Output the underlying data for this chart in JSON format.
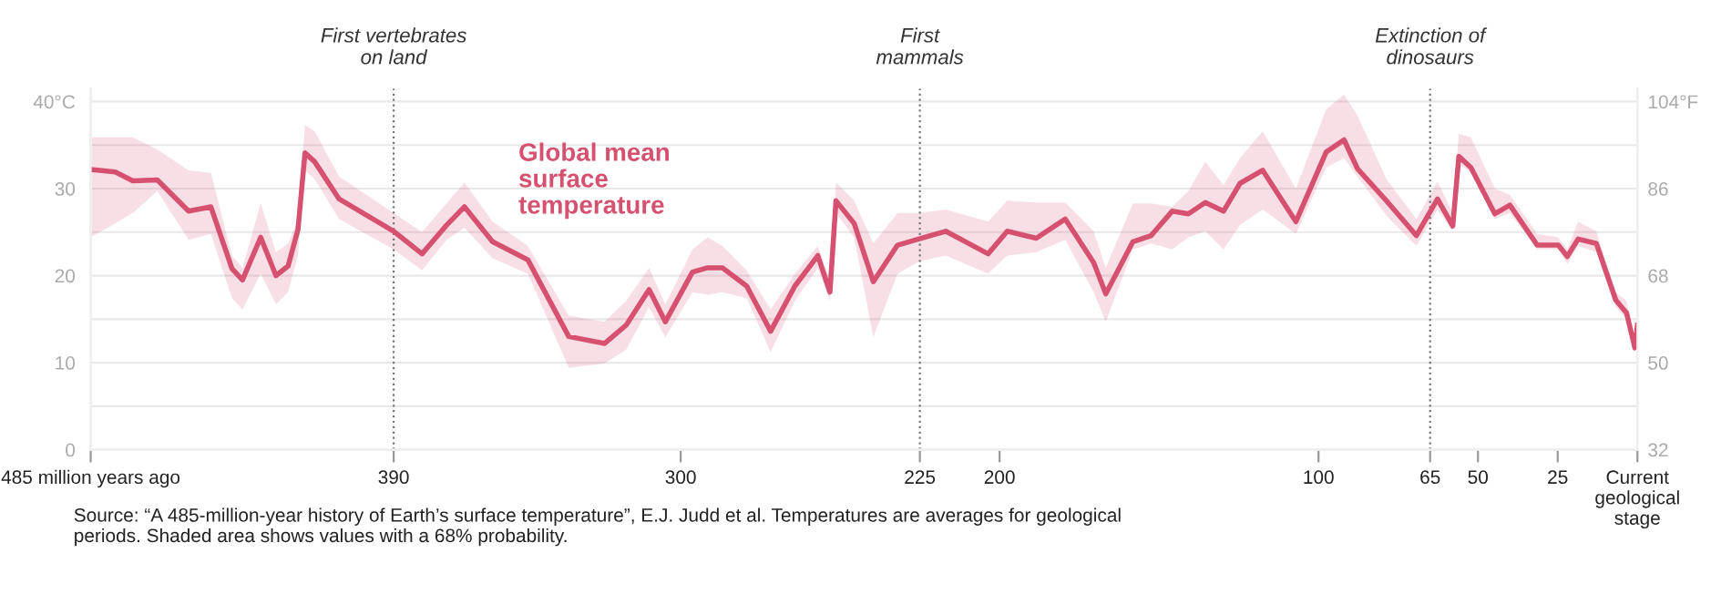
{
  "chart_data": {
    "type": "line",
    "xlim": [
      485,
      0
    ],
    "xticks": [
      {
        "value": 485,
        "label": "485 million years ago"
      },
      390,
      300,
      225,
      200,
      100,
      65,
      50,
      25,
      {
        "value": 0,
        "label": "Current\ngeological\nstage"
      }
    ],
    "ylim": [
      0,
      41.5
    ],
    "yticks": [
      0,
      {
        "value": 5,
        "label": null
      },
      10,
      {
        "value": 15,
        "label": null
      },
      20,
      {
        "value": 25,
        "label": null
      },
      30,
      {
        "value": 35,
        "label": null
      },
      {
        "value": 40,
        "label": "40°C"
      }
    ],
    "y2lim": [
      32,
      106.7
    ],
    "y2ticks": [
      32,
      50,
      68,
      86,
      {
        "value": 104,
        "label": "104°F"
      }
    ],
    "grid": "y",
    "legend": false,
    "series": [
      {
        "name": "Global mean surface temperature",
        "color": "#d6506f",
        "x": [
          485,
          477.3,
          471.8,
          464.1,
          454.3,
          447.3,
          440.7,
          437.4,
          431.7,
          426.9,
          423.1,
          420.0,
          417.8,
          414.8,
          407.1,
          390,
          381.1,
          373.4,
          367.8,
          359.0,
          347.9,
          335.1,
          323.9,
          317.1,
          309.9,
          304.8,
          296.3,
          291.6,
          286.9,
          279.3,
          271.8,
          264.2,
          257.0,
          253.2,
          251.3,
          245.6,
          239.6,
          232.0,
          225.4,
          216.9,
          203.6,
          197.6,
          188.5,
          179.4,
          170.5,
          166.7,
          158.2,
          152.5,
          145.9,
          140.8,
          135.5,
          129.8,
          124.6,
          117.5,
          107.1,
          97.6,
          92.0,
          87.8,
          78.7,
          69.3,
          62.7,
          57.9,
          56.0,
          52.2,
          44.7,
          40.0,
          31.4,
          24.8,
          22.0,
          18.6,
          12.9,
          6.8,
          3.4,
          0.8,
          0
        ],
        "values": [
          32.2,
          31.9,
          30.9,
          31.0,
          27.4,
          27.9,
          20.8,
          19.5,
          24.4,
          20.0,
          21.1,
          25.3,
          34.1,
          33.1,
          28.8,
          25.1,
          22.5,
          25.8,
          27.9,
          23.9,
          21.8,
          13.0,
          12.2,
          14.3,
          18.4,
          14.7,
          20.4,
          20.9,
          20.9,
          18.8,
          13.6,
          18.8,
          22.3,
          18.1,
          28.6,
          26.0,
          19.3,
          23.5,
          24.2,
          25.1,
          22.5,
          25.1,
          24.3,
          26.5,
          21.5,
          17.9,
          23.9,
          24.6,
          27.4,
          27.1,
          28.4,
          27.4,
          30.6,
          32.1,
          26.2,
          34.2,
          35.6,
          32.3,
          28.6,
          24.6,
          28.8,
          25.7,
          33.7,
          32.4,
          27.1,
          28.1,
          23.5,
          23.5,
          22.2,
          24.2,
          23.7,
          17.2,
          15.7,
          11.7,
          14.3
        ],
        "lower": [
          24.4,
          26.0,
          27.2,
          29.7,
          24.1,
          24.8,
          17.4,
          16.1,
          20.2,
          16.7,
          18.1,
          22.3,
          32.1,
          31.1,
          26.5,
          23.0,
          20.6,
          24.1,
          25.5,
          22.0,
          20.2,
          9.4,
          9.9,
          11.5,
          16.4,
          12.9,
          18.1,
          17.8,
          18.1,
          17.4,
          11.2,
          17.1,
          20.9,
          17.1,
          27.2,
          24.4,
          12.9,
          20.2,
          21.6,
          22.3,
          20.2,
          22.3,
          22.7,
          24.1,
          18.1,
          14.7,
          23.0,
          23.7,
          23.0,
          24.4,
          25.1,
          23.0,
          25.8,
          27.6,
          24.8,
          32.4,
          33.5,
          31.4,
          26.9,
          23.4,
          27.6,
          25.1,
          32.8,
          31.8,
          26.5,
          27.2,
          23.0,
          23.0,
          21.3,
          23.4,
          22.7,
          16.4,
          15.0,
          11.2,
          13.3
        ],
        "upper": [
          35.9,
          35.9,
          35.9,
          34.5,
          32.1,
          31.8,
          22.3,
          20.9,
          28.3,
          22.7,
          23.7,
          26.5,
          37.3,
          36.6,
          31.4,
          27.2,
          25.0,
          28.3,
          30.7,
          26.2,
          23.4,
          15.4,
          14.7,
          17.1,
          20.9,
          16.7,
          23.0,
          24.4,
          23.4,
          20.6,
          16.1,
          20.2,
          23.4,
          19.5,
          30.7,
          28.6,
          23.7,
          27.2,
          27.2,
          27.6,
          26.2,
          28.6,
          28.4,
          28.4,
          25.1,
          20.9,
          28.3,
          28.3,
          27.9,
          29.7,
          33.1,
          30.4,
          33.5,
          36.6,
          30.0,
          39.1,
          40.8,
          38.4,
          31.1,
          26.5,
          30.8,
          27.2,
          36.3,
          35.9,
          30.0,
          29.3,
          24.8,
          24.4,
          23.0,
          26.2,
          25.1,
          18.1,
          17.1,
          12.6,
          15.4
        ]
      }
    ],
    "ref_lines": [
      {
        "axis": "x",
        "value": 390,
        "label": "First vertebrates\non land",
        "color": "#777777",
        "line_style": "dotted"
      },
      {
        "axis": "x",
        "value": 225,
        "label": "First\nmammals",
        "color": "#777777",
        "line_style": "dotted"
      },
      {
        "axis": "x",
        "value": 65,
        "label": "Extinction of\ndinosaurs",
        "color": "#777777",
        "line_style": "dotted"
      }
    ],
    "annotations": [
      "Source: “A 485-million-year history of Earth’s surface temperature”, E.J. Judd et al. Temperatures are averages for geological periods. Shaded area shows values with a 68% probability."
    ]
  }
}
